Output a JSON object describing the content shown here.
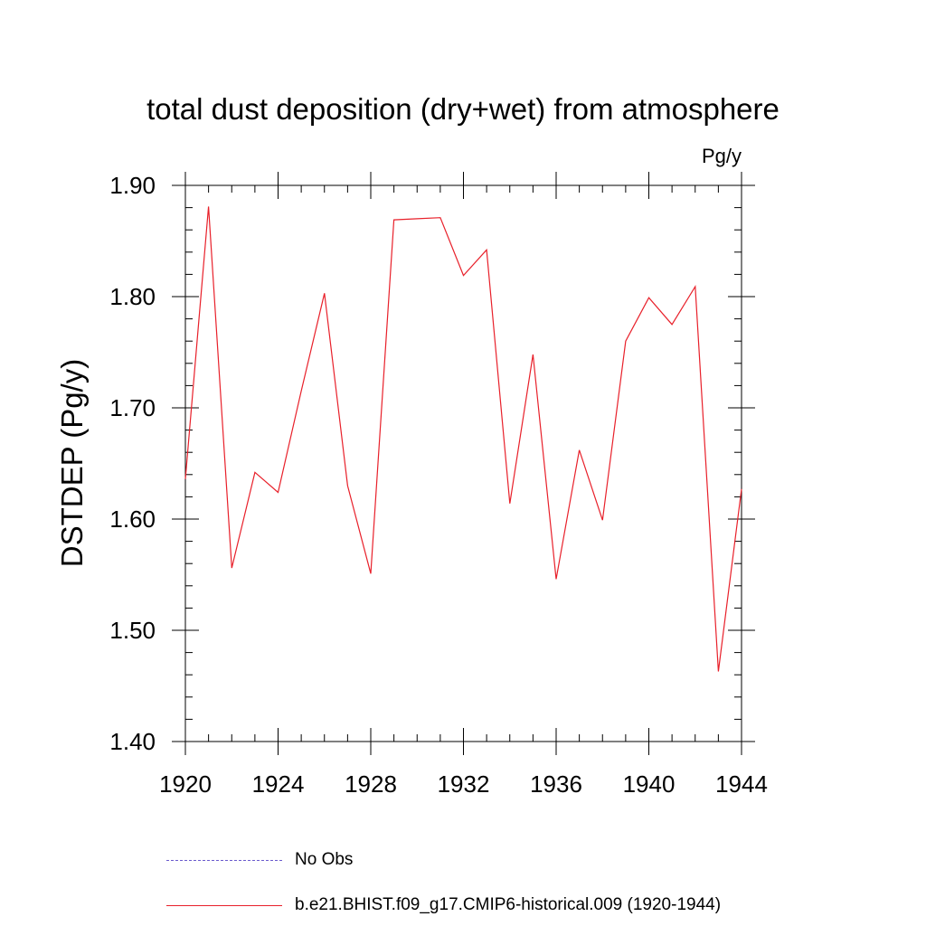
{
  "chart_data": {
    "type": "line",
    "title": "total dust deposition (dry+wet) from atmosphere",
    "units": "Pg/y",
    "xlabel": "",
    "ylabel": "DSTDEP  (Pg/y)",
    "xlim": [
      1920,
      1944
    ],
    "ylim": [
      1.4,
      1.9
    ],
    "x_ticks": [
      1920,
      1924,
      1928,
      1932,
      1936,
      1940,
      1944
    ],
    "x_tick_labels": [
      "1920",
      "1924",
      "1928",
      "1932",
      "1936",
      "1940",
      "1944"
    ],
    "y_ticks": [
      1.4,
      1.5,
      1.6,
      1.7,
      1.8,
      1.9
    ],
    "y_tick_labels": [
      "1.40",
      "1.50",
      "1.60",
      "1.70",
      "1.80",
      "1.90"
    ],
    "grid": false,
    "legend_position": "bottom",
    "series": [
      {
        "name": "b.e21.BHIST.f09_g17.CMIP6-historical.009 (1920-1944)",
        "color": "#e8202a",
        "style": "solid",
        "x": [
          1920,
          1921,
          1922,
          1923,
          1924,
          1925,
          1926,
          1927,
          1928,
          1929,
          1930,
          1931,
          1932,
          1933,
          1934,
          1935,
          1936,
          1937,
          1938,
          1939,
          1940,
          1941,
          1942,
          1943,
          1944
        ],
        "y": [
          1.636,
          1.881,
          1.556,
          1.642,
          1.624,
          1.715,
          1.803,
          1.63,
          1.551,
          1.869,
          1.87,
          1.871,
          1.819,
          1.842,
          1.614,
          1.748,
          1.546,
          1.662,
          1.599,
          1.76,
          1.799,
          1.775,
          1.809,
          1.463,
          1.627
        ]
      }
    ],
    "legend": [
      {
        "label": "No Obs",
        "style": "dashed",
        "color": "#6a5acd"
      },
      {
        "label": "b.e21.BHIST.f09_g17.CMIP6-historical.009 (1920-1944)",
        "style": "solid",
        "color": "#e8202a"
      }
    ]
  }
}
